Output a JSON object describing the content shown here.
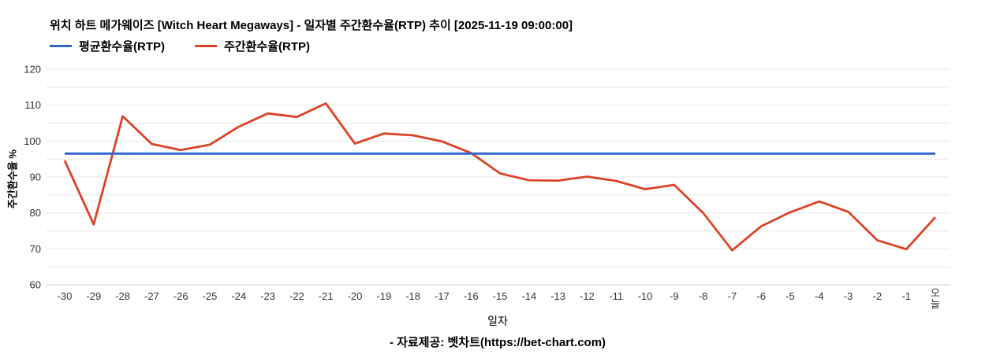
{
  "title": "위치 하트 메가웨이즈 [Witch Heart Megaways] - 일자별 주간환수율(RTP) 추이 [2025-11-19 09:00:00]",
  "legend": [
    {
      "label": "평균환수율(RTP)",
      "color": "#3366cc"
    },
    {
      "label": "주간환수율(RTP)",
      "color": "#dc4326"
    }
  ],
  "footer": "- 자료제공: 벳차트(https://bet-chart.com)",
  "axes": {
    "ylabel": "주간환수율 %",
    "xlabel": "일자"
  },
  "chart_data": {
    "type": "line",
    "title": "위치 하트 메가웨이즈 [Witch Heart Megaways] - 일자별 주간환수율(RTP) 추이 [2025-11-19 09:00:00]",
    "xlabel": "일자",
    "ylabel": "주간환수율 %",
    "x": [
      "-30",
      "-29",
      "-28",
      "-27",
      "-26",
      "-25",
      "-24",
      "-23",
      "-22",
      "-21",
      "-20",
      "-19",
      "-18",
      "-17",
      "-16",
      "-15",
      "-14",
      "-13",
      "-12",
      "-11",
      "-10",
      "-9",
      "-8",
      "-7",
      "-6",
      "-5",
      "-4",
      "-3",
      "-2",
      "-1",
      "오늘"
    ],
    "series": [
      {
        "name": "평균환수율(RTP)",
        "color": "#3366cc",
        "stroke_width": 3,
        "values": [
          96.5,
          96.5,
          96.5,
          96.5,
          96.5,
          96.5,
          96.5,
          96.5,
          96.5,
          96.5,
          96.5,
          96.5,
          96.5,
          96.5,
          96.5,
          96.5,
          96.5,
          96.5,
          96.5,
          96.5,
          96.5,
          96.5,
          96.5,
          96.5,
          96.5,
          96.5,
          96.5,
          96.5,
          96.5,
          96.5,
          96.5
        ]
      },
      {
        "name": "주간환수율(RTP)",
        "color": "#dc4326",
        "stroke_width": 2.8,
        "values": [
          94.6,
          76.8,
          106.9,
          99.2,
          97.5,
          99.0,
          104.0,
          107.7,
          106.7,
          110.5,
          99.3,
          102.1,
          101.6,
          99.9,
          96.7,
          91.0,
          89.1,
          89.0,
          90.1,
          88.9,
          86.6,
          87.8,
          80.0,
          69.6,
          76.3,
          80.2,
          83.2,
          80.3,
          72.4,
          69.9,
          78.8
        ]
      }
    ],
    "ylim": [
      60,
      120
    ],
    "yticks": [
      60,
      70,
      80,
      90,
      100,
      110,
      120
    ],
    "ytick_minor_step": 5,
    "grid": "horizontal",
    "legend_position": "top-left",
    "vertical_xtick_labels": [
      "오늘"
    ],
    "tick_color": "#333333",
    "gridline_color": "#e6e6e6",
    "baseline_color": "#c8c8c8"
  }
}
